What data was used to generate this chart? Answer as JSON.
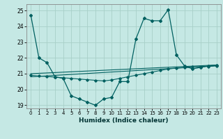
{
  "title": "",
  "xlabel": "Humidex (Indice chaleur)",
  "background_color": "#c5e8e4",
  "grid_color": "#a8cfc8",
  "line_color": "#006060",
  "xlim": [
    -0.5,
    23.5
  ],
  "ylim": [
    18.8,
    25.4
  ],
  "yticks": [
    19,
    20,
    21,
    22,
    23,
    24,
    25
  ],
  "xticks": [
    0,
    1,
    2,
    3,
    4,
    5,
    6,
    7,
    8,
    9,
    10,
    11,
    12,
    13,
    14,
    15,
    16,
    17,
    18,
    19,
    20,
    21,
    22,
    23
  ],
  "series1_x": [
    0,
    1,
    2,
    3,
    4,
    5,
    6,
    7,
    8,
    9,
    10,
    11,
    12,
    13,
    14,
    15,
    16,
    17,
    18,
    19,
    20,
    21,
    22,
    23
  ],
  "series1_y": [
    24.7,
    22.0,
    21.7,
    20.8,
    20.7,
    19.6,
    19.4,
    19.2,
    19.0,
    19.4,
    19.5,
    20.5,
    20.5,
    23.2,
    24.5,
    24.35,
    24.35,
    25.05,
    22.2,
    21.5,
    21.3,
    21.4,
    21.5,
    21.55
  ],
  "series2_x": [
    0,
    1,
    2,
    3,
    4,
    5,
    6,
    7,
    8,
    9,
    10,
    11,
    12,
    13,
    14,
    15,
    16,
    17,
    18,
    19,
    20,
    21,
    22,
    23
  ],
  "series2_y": [
    20.9,
    20.85,
    20.82,
    20.78,
    20.74,
    20.7,
    20.66,
    20.62,
    20.58,
    20.54,
    20.6,
    20.7,
    20.8,
    20.9,
    21.0,
    21.1,
    21.2,
    21.3,
    21.35,
    21.4,
    21.42,
    21.44,
    21.46,
    21.5
  ],
  "series3_x": [
    0,
    23
  ],
  "series3_y": [
    20.8,
    21.5
  ],
  "series4_x": [
    0,
    23
  ],
  "series4_y": [
    21.0,
    21.55
  ]
}
